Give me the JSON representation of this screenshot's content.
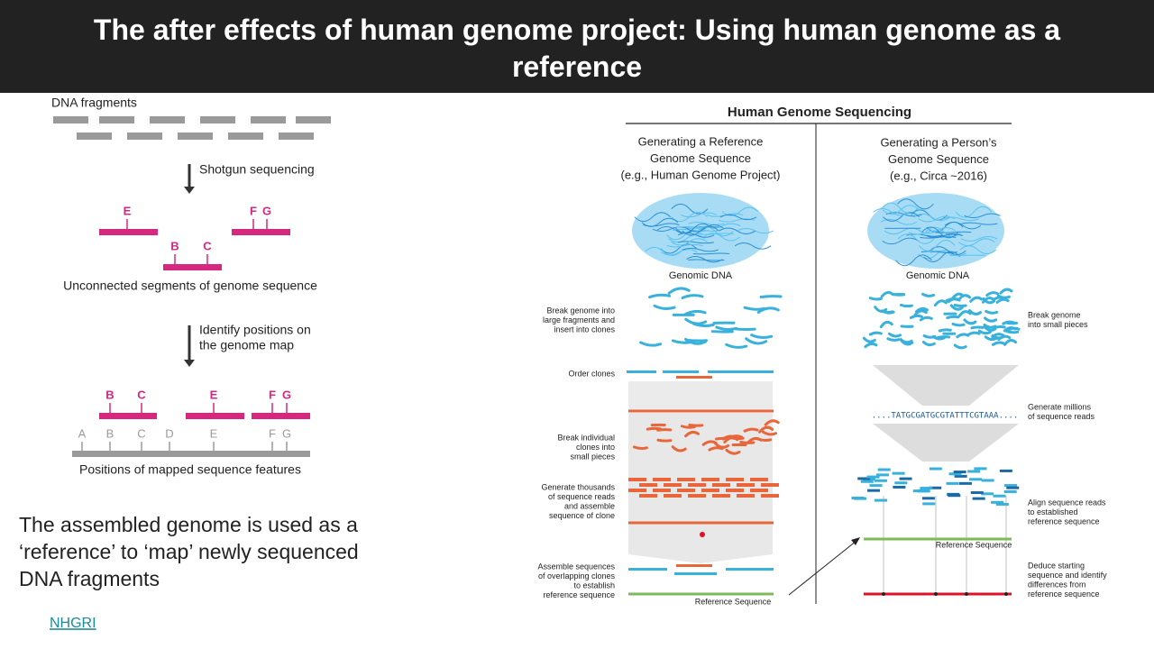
{
  "title": "The after effects of human genome project: Using human genome as a reference",
  "left_diagram": {
    "fragments_label": "DNA fragments",
    "step1": "Shotgun sequencing",
    "segment_labels": [
      "E",
      "F",
      "G",
      "B",
      "C"
    ],
    "unconnected_label": "Unconnected segments of genome sequence",
    "step2": [
      "Identify positions on",
      "the genome map"
    ],
    "mapped_labels": [
      "B",
      "C",
      "E",
      "F",
      "G"
    ],
    "map_features": [
      "A",
      "B",
      "C",
      "D",
      "E",
      "F",
      "G"
    ],
    "map_label": "Positions of mapped sequence features"
  },
  "caption": [
    "The assembled genome is used as a",
    "‘reference’ to ‘map’ newly sequenced",
    "DNA fragments"
  ],
  "link": "NHGRI",
  "right_figure": {
    "heading": "Human Genome Sequencing",
    "columns": [
      {
        "title": [
          "Generating a Reference",
          "Genome Sequence",
          "(e.g., Human Genome Project)"
        ],
        "dna_label": "Genomic DNA",
        "steps": [
          [
            "Break genome into",
            "large fragments and",
            "insert into clones"
          ],
          [
            "Order clones"
          ],
          [
            "Break individual",
            "clones into",
            "small pieces"
          ],
          [
            "Generate thousands",
            "of sequence reads",
            "and assemble",
            "sequence of clone"
          ],
          [
            "Assemble sequences",
            "of overlapping clones",
            "to establish",
            "reference sequence"
          ]
        ],
        "reference_label": "Reference Sequence"
      },
      {
        "title": [
          "Generating a Person’s",
          "Genome Sequence",
          "(e.g., Circa ~2016)"
        ],
        "dna_label": "Genomic DNA",
        "steps": [
          [
            "Break genome",
            "into small pieces"
          ],
          [
            "Generate millions",
            "of sequence reads"
          ],
          [
            "Align sequence reads",
            "to established",
            "reference sequence"
          ],
          [
            "Deduce starting",
            "sequence and identify",
            "differences from",
            "reference sequence"
          ]
        ],
        "read_sequence": "....TATGCGATGCGTATTTCGTAAA....",
        "reference_label": "Reference Sequence"
      }
    ]
  }
}
